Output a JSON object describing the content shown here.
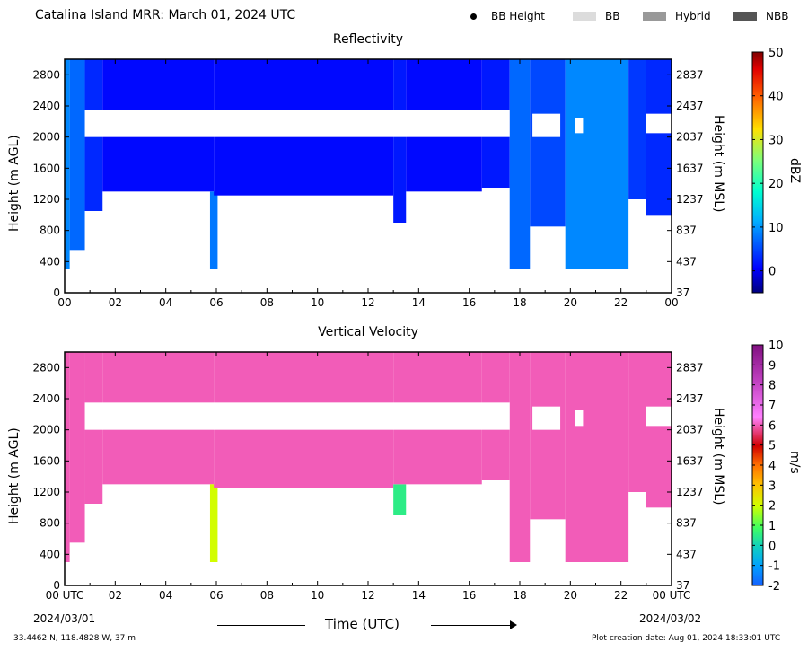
{
  "header": {
    "title": "Catalina Island MRR:  March 01, 2024 UTC",
    "legend": [
      {
        "label": "BB Height",
        "kind": "dot",
        "color": "#000000"
      },
      {
        "label": "BB",
        "kind": "swatch",
        "color": "#dcdcdc"
      },
      {
        "label": "Hybrid",
        "kind": "swatch",
        "color": "#999999"
      },
      {
        "label": "NBB",
        "kind": "swatch",
        "color": "#555555"
      }
    ]
  },
  "footer": {
    "location": "33.4462 N, 118.4828 W, 37 m",
    "creation": "Plot creation date: Aug 01, 2024 18:33:01 UTC",
    "time_label": "Time (UTC)",
    "start_date": "2024/03/01",
    "end_date": "2024/03/02"
  },
  "chart_data": [
    {
      "type": "heatmap",
      "title": "Reflectivity",
      "xlabel": "Time (UTC)",
      "ylabel": "Height (m AGL)",
      "ylabel_right": "Height (m MSL)",
      "x_ticks": [
        "00",
        "02",
        "04",
        "06",
        "08",
        "10",
        "12",
        "14",
        "16",
        "18",
        "20",
        "22",
        "00"
      ],
      "xlim": [
        0,
        24
      ],
      "y_ticks_left": [
        0,
        400,
        800,
        1200,
        1600,
        2000,
        2400,
        2800
      ],
      "y_ticks_right": [
        37,
        437,
        837,
        1237,
        1637,
        2037,
        2437,
        2837
      ],
      "ylim": [
        0,
        3000
      ],
      "colorbar": {
        "label": "dBZ",
        "range": [
          -5,
          50
        ],
        "ticks": [
          0,
          10,
          20,
          30,
          40,
          50
        ]
      },
      "bands": [
        {
          "start_h": 0.0,
          "end_h": 0.2,
          "low_m": 300,
          "high_m": 3000,
          "value": 9
        },
        {
          "start_h": 0.2,
          "end_h": 0.8,
          "low_m": 550,
          "high_m": 3000,
          "value": 7
        },
        {
          "start_h": 0.8,
          "end_h": 1.5,
          "low_m": 1050,
          "high_m": 3000,
          "value": 3
        },
        {
          "start_h": 1.5,
          "end_h": 5.9,
          "low_m": 1300,
          "high_m": 3000,
          "value": 1
        },
        {
          "start_h": 5.75,
          "end_h": 6.05,
          "low_m": 300,
          "high_m": 1300,
          "value": 8
        },
        {
          "start_h": 5.9,
          "end_h": 13.0,
          "low_m": 1250,
          "high_m": 3000,
          "value": 1
        },
        {
          "start_h": 13.0,
          "end_h": 13.5,
          "low_m": 900,
          "high_m": 3000,
          "value": 2
        },
        {
          "start_h": 13.5,
          "end_h": 16.5,
          "low_m": 1300,
          "high_m": 3000,
          "value": 1
        },
        {
          "start_h": 16.5,
          "end_h": 17.6,
          "low_m": 1350,
          "high_m": 3000,
          "value": 2
        },
        {
          "start_h": 17.6,
          "end_h": 18.4,
          "low_m": 300,
          "high_m": 3000,
          "value": 7
        },
        {
          "start_h": 18.4,
          "end_h": 19.8,
          "low_m": 850,
          "high_m": 3000,
          "value": 5
        },
        {
          "start_h": 19.8,
          "end_h": 22.3,
          "low_m": 300,
          "high_m": 3000,
          "value": 9
        },
        {
          "start_h": 22.3,
          "end_h": 23.0,
          "low_m": 1200,
          "high_m": 3000,
          "value": 4
        },
        {
          "start_h": 23.0,
          "end_h": 24.0,
          "low_m": 1000,
          "high_m": 3000,
          "value": 3
        }
      ],
      "gaps": [
        {
          "start_h": 0.8,
          "end_h": 17.6,
          "low_m": 2000,
          "high_m": 2350
        },
        {
          "start_h": 18.5,
          "end_h": 19.6,
          "low_m": 2000,
          "high_m": 2300
        },
        {
          "start_h": 20.2,
          "end_h": 20.5,
          "low_m": 2050,
          "high_m": 2250
        },
        {
          "start_h": 23.0,
          "end_h": 24.0,
          "low_m": 2050,
          "high_m": 2300
        }
      ]
    },
    {
      "type": "heatmap",
      "title": "Vertical Velocity",
      "xlabel": "Time (UTC)",
      "ylabel": "Height (m AGL)",
      "ylabel_right": "Height (m MSL)",
      "x_ticks": [
        "00 UTC",
        "02",
        "04",
        "06",
        "08",
        "10",
        "12",
        "14",
        "16",
        "18",
        "20",
        "22",
        "00 UTC"
      ],
      "xlim": [
        0,
        24
      ],
      "y_ticks_left": [
        0,
        400,
        800,
        1200,
        1600,
        2000,
        2400,
        2800
      ],
      "y_ticks_right": [
        37,
        437,
        837,
        1237,
        1637,
        2037,
        2437,
        2837
      ],
      "ylim": [
        0,
        3000
      ],
      "colorbar": {
        "label": "m/s",
        "range": [
          -2,
          10
        ],
        "ticks": [
          -2,
          -1,
          0,
          1,
          2,
          3,
          4,
          5,
          6,
          7,
          8,
          9,
          10
        ]
      },
      "bands": [
        {
          "start_h": 0.0,
          "end_h": 0.2,
          "low_m": 300,
          "high_m": 3000,
          "value": 6
        },
        {
          "start_h": 0.2,
          "end_h": 0.8,
          "low_m": 550,
          "high_m": 3000,
          "value": 6
        },
        {
          "start_h": 0.8,
          "end_h": 1.5,
          "low_m": 1050,
          "high_m": 3000,
          "value": 6
        },
        {
          "start_h": 1.5,
          "end_h": 5.9,
          "low_m": 1300,
          "high_m": 3000,
          "value": 6
        },
        {
          "start_h": 5.75,
          "end_h": 6.05,
          "low_m": 300,
          "high_m": 1300,
          "value": 2
        },
        {
          "start_h": 5.9,
          "end_h": 13.0,
          "low_m": 1250,
          "high_m": 3000,
          "value": 6
        },
        {
          "start_h": 13.0,
          "end_h": 13.5,
          "low_m": 900,
          "high_m": 1300,
          "value": 0.5
        },
        {
          "start_h": 13.0,
          "end_h": 16.5,
          "low_m": 1300,
          "high_m": 3000,
          "value": 6
        },
        {
          "start_h": 16.5,
          "end_h": 17.6,
          "low_m": 1350,
          "high_m": 3000,
          "value": 6
        },
        {
          "start_h": 17.6,
          "end_h": 18.4,
          "low_m": 300,
          "high_m": 3000,
          "value": 6
        },
        {
          "start_h": 18.4,
          "end_h": 19.8,
          "low_m": 850,
          "high_m": 3000,
          "value": 6
        },
        {
          "start_h": 19.8,
          "end_h": 22.3,
          "low_m": 300,
          "high_m": 3000,
          "value": 6
        },
        {
          "start_h": 22.3,
          "end_h": 23.0,
          "low_m": 1200,
          "high_m": 3000,
          "value": 6
        },
        {
          "start_h": 23.0,
          "end_h": 24.0,
          "low_m": 1000,
          "high_m": 3000,
          "value": 6
        }
      ],
      "gaps": [
        {
          "start_h": 0.8,
          "end_h": 17.6,
          "low_m": 2000,
          "high_m": 2350
        },
        {
          "start_h": 18.5,
          "end_h": 19.6,
          "low_m": 2000,
          "high_m": 2300
        },
        {
          "start_h": 20.2,
          "end_h": 20.5,
          "low_m": 2050,
          "high_m": 2250
        },
        {
          "start_h": 23.0,
          "end_h": 24.0,
          "low_m": 2050,
          "high_m": 2300
        }
      ]
    }
  ]
}
